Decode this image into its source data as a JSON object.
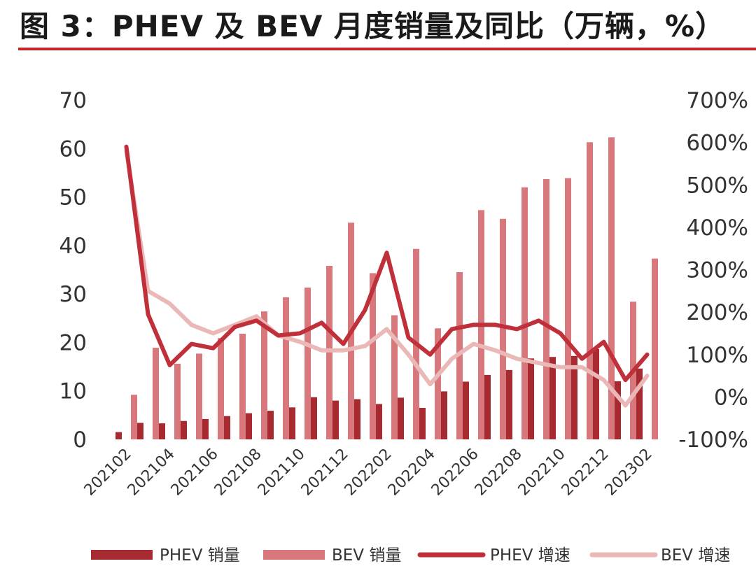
{
  "title": "图 3：PHEV 及 BEV 月度销量及同比（万辆，%）",
  "chart_data": {
    "type": "bar+line",
    "categories": [
      "202102",
      "202103",
      "202104",
      "202105",
      "202106",
      "202107",
      "202108",
      "202109",
      "202110",
      "202111",
      "202112",
      "202201",
      "202202",
      "202203",
      "202204",
      "202205",
      "202206",
      "202207",
      "202208",
      "202209",
      "202210",
      "202211",
      "202212",
      "202301",
      "202302"
    ],
    "x_tick_labels": [
      "202102",
      "202104",
      "202106",
      "202108",
      "202110",
      "202112",
      "202202",
      "202204",
      "202206",
      "202208",
      "202210",
      "202212",
      "202302"
    ],
    "y_left": {
      "min": 0,
      "max": 70,
      "ticks": [
        0,
        10,
        20,
        30,
        40,
        50,
        60,
        70
      ],
      "tick_labels": [
        "0",
        "10",
        "20",
        "30",
        "40",
        "50",
        "60",
        "70"
      ]
    },
    "y_right": {
      "min": -100,
      "max": 700,
      "ticks": [
        -100,
        0,
        100,
        200,
        300,
        400,
        500,
        600,
        700
      ],
      "tick_labels": [
        "-100%",
        "0%",
        "100%",
        "200%",
        "300%",
        "400%",
        "500%",
        "600%",
        "700%"
      ]
    },
    "series": [
      {
        "name": "PHEV 销量",
        "type": "bar",
        "axis": "left",
        "color": "#a82a31",
        "values": [
          1.5,
          3.4,
          3.3,
          3.8,
          4.2,
          4.8,
          5.4,
          5.9,
          6.6,
          8.7,
          8.0,
          8.3,
          7.3,
          8.6,
          6.5,
          9.9,
          11.9,
          13.3,
          14.3,
          16.7,
          17.0,
          17.2,
          18.6,
          12.0,
          14.6
        ]
      },
      {
        "name": "BEV 销量",
        "type": "bar",
        "axis": "left",
        "color": "#d9787c",
        "values": [
          9.2,
          18.9,
          15.6,
          17.7,
          20.9,
          21.8,
          26.4,
          29.3,
          31.3,
          35.8,
          44.7,
          34.3,
          25.6,
          39.3,
          22.9,
          34.5,
          47.3,
          45.5,
          52.0,
          53.7,
          53.9,
          61.3,
          62.3,
          28.4,
          37.3
        ]
      },
      {
        "name": "PHEV 增速",
        "type": "line",
        "axis": "right",
        "color": "#c0303a",
        "values": [
          590,
          195,
          75,
          125,
          115,
          165,
          180,
          145,
          150,
          175,
          125,
          205,
          340,
          140,
          100,
          160,
          170,
          170,
          160,
          180,
          150,
          90,
          130,
          40,
          100
        ]
      },
      {
        "name": "BEV 增速",
        "type": "line",
        "axis": "right",
        "color": "#eab9b7",
        "values": [
          580,
          250,
          220,
          170,
          150,
          170,
          190,
          145,
          130,
          110,
          110,
          120,
          160,
          100,
          30,
          90,
          125,
          110,
          90,
          80,
          70,
          70,
          40,
          -20,
          50
        ]
      }
    ],
    "legend": {
      "position": "bottom"
    }
  }
}
